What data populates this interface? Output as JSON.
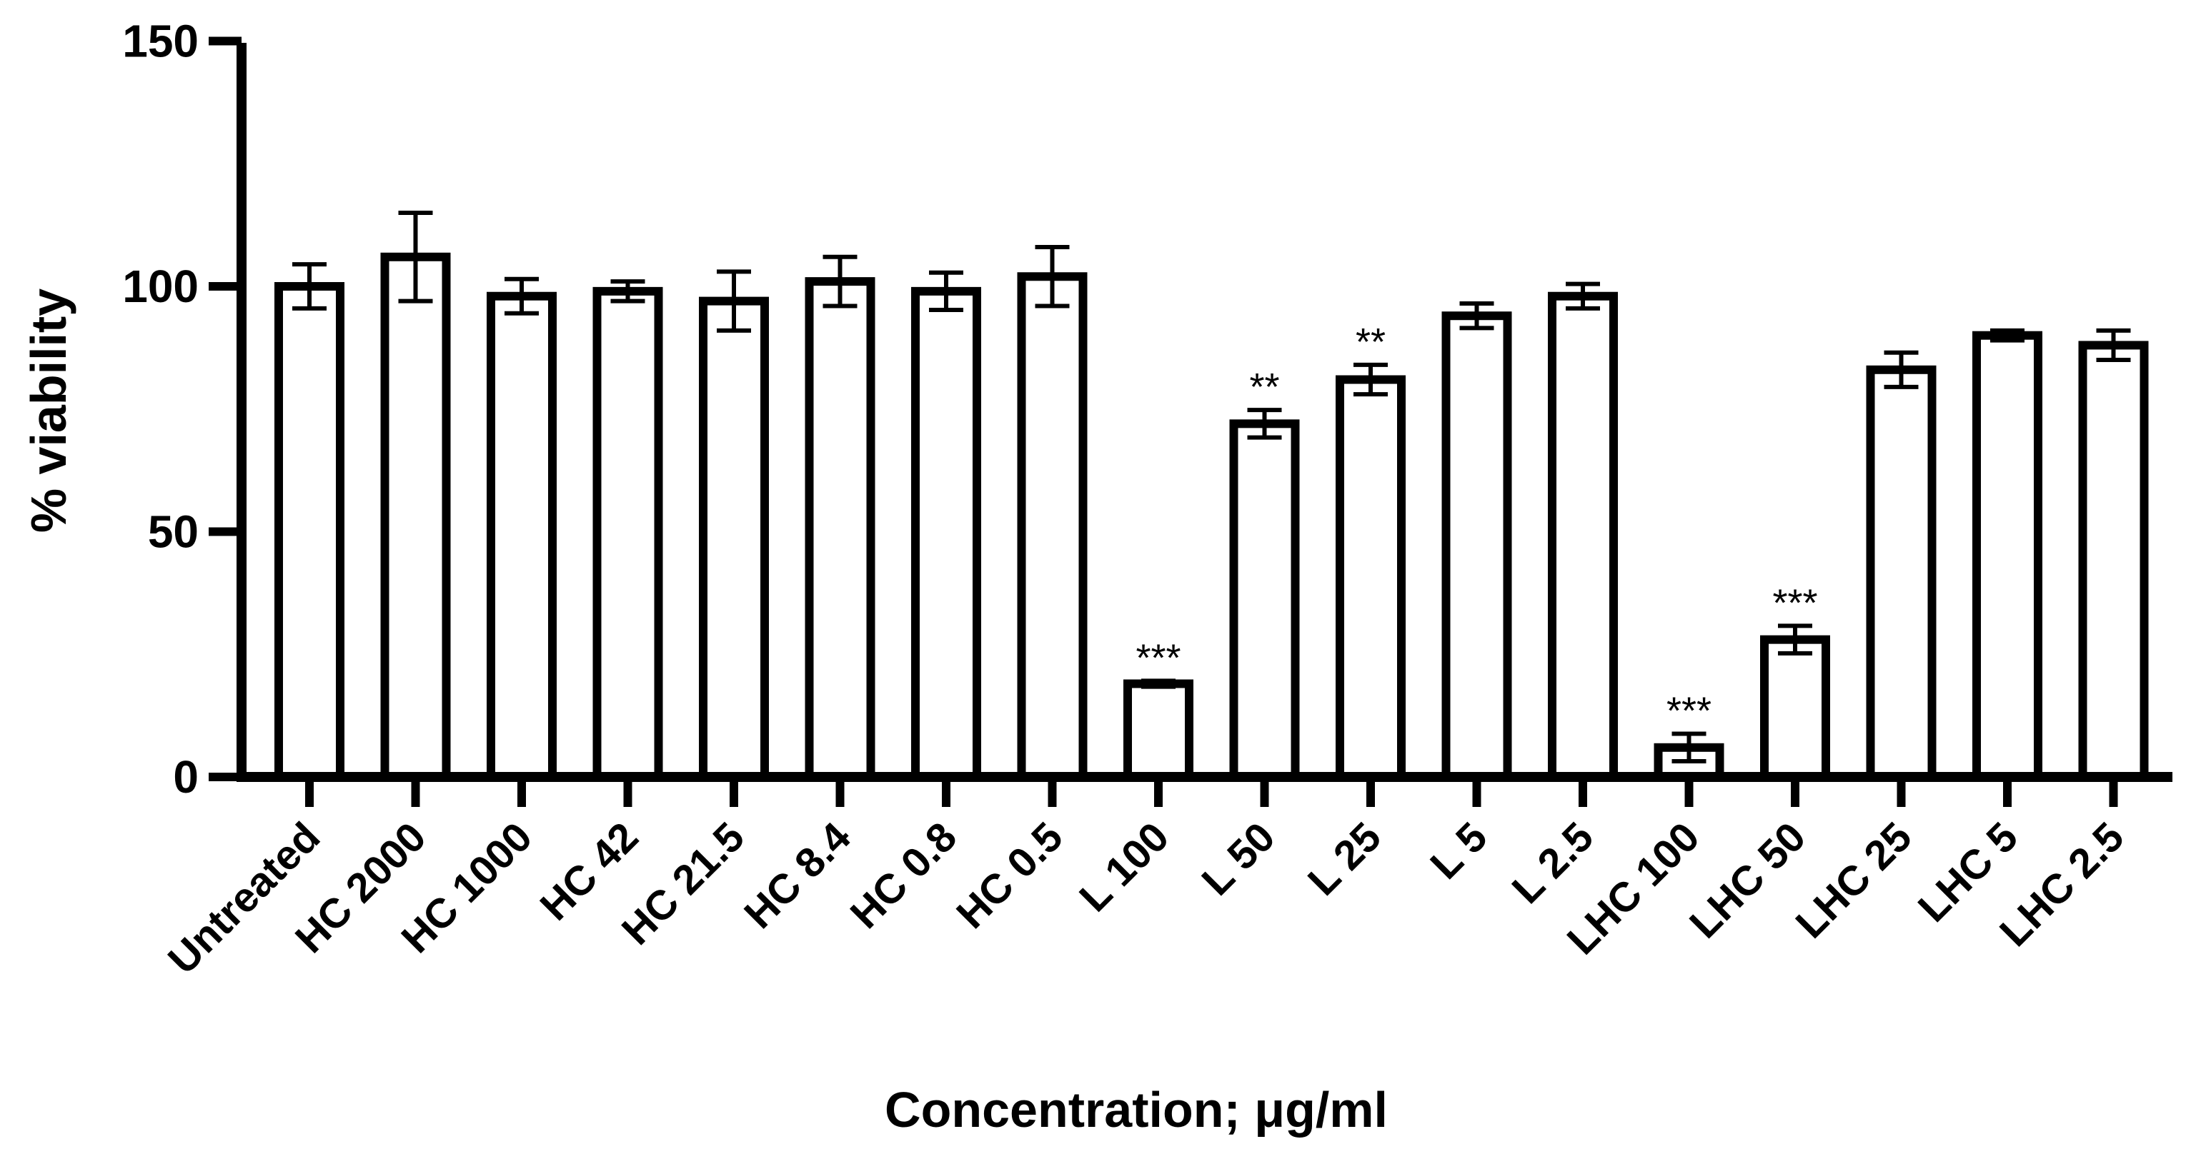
{
  "chart_data": {
    "type": "bar",
    "title": "",
    "xlabel": "Concentration; μg/ml",
    "ylabel": "% viability",
    "ylim": [
      0,
      150
    ],
    "yticks": [
      "0",
      "50",
      "100",
      "150"
    ],
    "categories": [
      "Untreated",
      "HC 2000",
      "HC 1000",
      "HC 42",
      "HC 21.5",
      "HC 8.4",
      "HC 0.8",
      "HC 0.5",
      "L 100",
      "L 50",
      "L 25",
      "L 5",
      "L 2.5",
      "LHC 100",
      "LHC 50",
      "LHC 25",
      "LHC 5",
      "LHC 2.5"
    ],
    "values": [
      100,
      106,
      98,
      99,
      97,
      101,
      99,
      102,
      19,
      72,
      81,
      94,
      98,
      6,
      28,
      83,
      90,
      88
    ],
    "errors": [
      4.5,
      9.0,
      3.5,
      2.0,
      6.0,
      5.0,
      3.8,
      6.0,
      0.6,
      2.8,
      3.0,
      2.5,
      2.5,
      2.8,
      2.8,
      3.5,
      1.0,
      3.0
    ],
    "significance": [
      "",
      "",
      "",
      "",
      "",
      "",
      "",
      "",
      "***",
      "**",
      "**",
      "",
      "",
      "***",
      "***",
      "",
      "",
      ""
    ],
    "grid": false,
    "legend": "none"
  },
  "colors": {
    "bar_fill": "#ffffff",
    "stroke": "#000000",
    "background": "#ffffff"
  }
}
